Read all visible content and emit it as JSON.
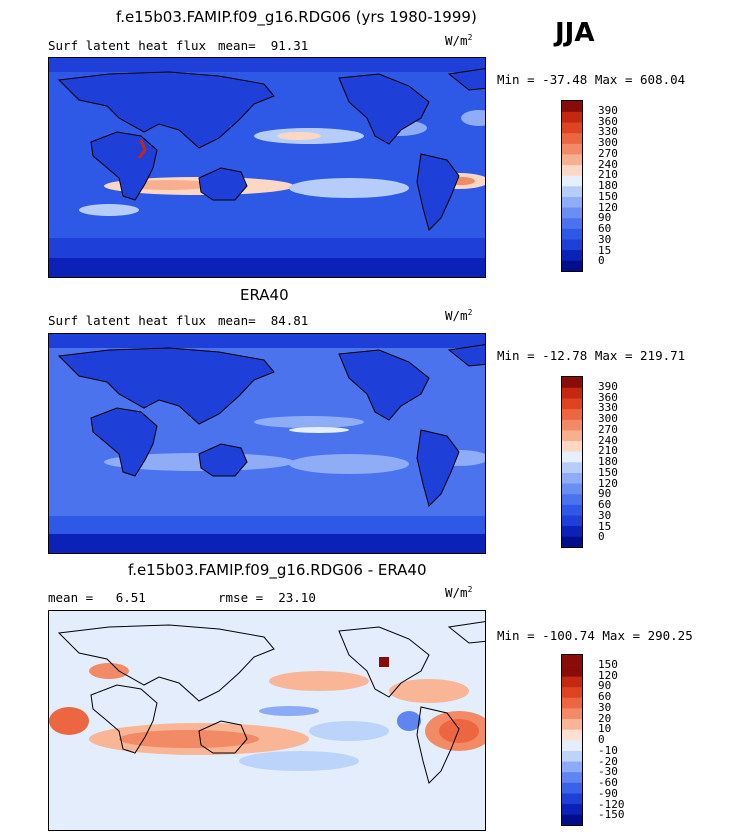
{
  "season": "JJA",
  "colors": {
    "abs_scale": [
      "#000e8c",
      "#0b22b8",
      "#1e3fd8",
      "#2e58e6",
      "#4b73ee",
      "#6a8ff2",
      "#8eadf6",
      "#b6cdfa",
      "#e6effc",
      "#fcd8c4",
      "#f7b08e",
      "#f28a65",
      "#eb6641",
      "#de4420",
      "#c42810",
      "#8a0c08"
    ],
    "diff_scale": [
      "#000e8c",
      "#0b22b8",
      "#1e3fd8",
      "#3a62e8",
      "#5f86f0",
      "#8cabf6",
      "#bcd3fa",
      "#e3edfc",
      "#fde0d0",
      "#f8b696",
      "#f28a65",
      "#eb6641",
      "#de4420",
      "#c42810",
      "#8a0c08"
    ]
  },
  "chart_data": [
    {
      "type": "heatmap",
      "title": "f.e15b03.FAMIP.f09_g16.RDG06 (yrs 1980-1999)",
      "variable": "Surf latent heat flux",
      "mean_label": "mean=",
      "mean": "91.31",
      "units": "W/m",
      "units_sup": "2",
      "min_label": "Min =",
      "min": "-37.48",
      "max_label": "Max =",
      "max": "608.04",
      "levels": [
        "390",
        "360",
        "330",
        "300",
        "270",
        "240",
        "210",
        "180",
        "150",
        "120",
        "90",
        "60",
        "30",
        "15",
        "0"
      ]
    },
    {
      "type": "heatmap",
      "title": "ERA40",
      "variable": "Surf latent heat flux",
      "mean_label": "mean=",
      "mean": "84.81",
      "units": "W/m",
      "units_sup": "2",
      "min_label": "Min =",
      "min": "-12.78",
      "max_label": "Max =",
      "max": "219.71",
      "levels": [
        "390",
        "360",
        "330",
        "300",
        "270",
        "240",
        "210",
        "180",
        "150",
        "120",
        "90",
        "60",
        "30",
        "15",
        "0"
      ]
    },
    {
      "type": "heatmap",
      "title": "f.e15b03.FAMIP.f09_g16.RDG06 - ERA40",
      "mean_label": "mean =",
      "mean": "6.51",
      "rmse_label": "rmse =",
      "rmse": "23.10",
      "units": "W/m",
      "units_sup": "2",
      "min_label": "Min =",
      "min": "-100.74",
      "max_label": "Max =",
      "max": "290.25",
      "levels": [
        "150",
        "120",
        "90",
        "60",
        "30",
        "20",
        "10",
        "0",
        "-10",
        "-20",
        "-30",
        "-60",
        "-90",
        "-120",
        "-150"
      ]
    }
  ]
}
